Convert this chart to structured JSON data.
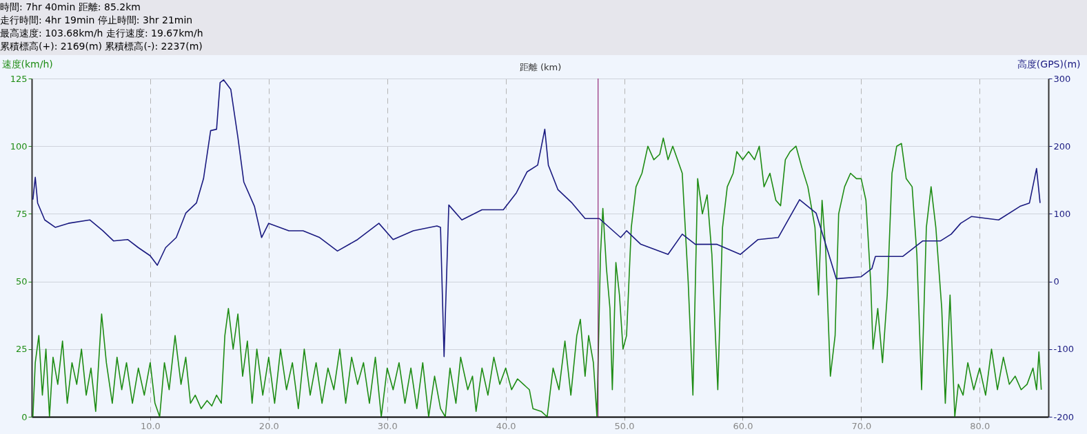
{
  "chart_data": {
    "type": "line",
    "xlabel": "距離 (km)",
    "ylabel": "速度(km/h)",
    "y2label": "高度(GPS)(m)",
    "annotations": [
      "時間: 7hr 40min 距離: 85.2km",
      "走行時間: 4hr 19min 停止時間: 3hr 21min",
      "最高速度: 103.68km/h 走行速度: 19.67km/h",
      "累積標高(+): 2169(m) 累積標高(-): 2237(m)"
    ],
    "xlim": [
      0,
      85.8
    ],
    "xticks": [
      {
        "value": 10,
        "label": "10.0"
      },
      {
        "value": 20,
        "label": "20.0"
      },
      {
        "value": 30,
        "label": "30.0"
      },
      {
        "value": 40,
        "label": "40.0"
      },
      {
        "value": 50,
        "label": "50.0"
      },
      {
        "value": 60,
        "label": "60.0"
      },
      {
        "value": 70,
        "label": "70.0"
      },
      {
        "value": 80,
        "label": "80.0"
      }
    ],
    "ylim": [
      0,
      125
    ],
    "yticks": [
      0,
      25,
      50,
      75,
      100,
      125
    ],
    "y2lim": [
      -200,
      300
    ],
    "y2ticks": [
      -200,
      -100,
      0,
      100,
      200,
      300
    ],
    "grid": true,
    "ref_lines": [
      {
        "axis": "x",
        "value": 47.8,
        "color": "#800060"
      }
    ],
    "series": [
      {
        "color": "#1e8c14",
        "x": [
          0.1,
          0.3,
          0.6,
          0.9,
          1.2,
          1.5,
          1.8,
          2.2,
          2.6,
          3.0,
          3.4,
          3.8,
          4.2,
          4.6,
          5.0,
          5.4,
          5.9,
          6.3,
          6.8,
          7.2,
          7.6,
          8.0,
          8.5,
          9.0,
          9.5,
          10.0,
          10.4,
          10.8,
          11.2,
          11.6,
          12.1,
          12.6,
          13.0,
          13.4,
          13.8,
          14.3,
          14.8,
          15.2,
          15.6,
          16.0,
          16.3,
          16.6,
          17.0,
          17.4,
          17.8,
          18.2,
          18.6,
          19.0,
          19.5,
          20.0,
          20.5,
          21.0,
          21.5,
          22.0,
          22.5,
          23.0,
          23.5,
          24.0,
          24.5,
          25.0,
          25.5,
          26.0,
          26.5,
          27.0,
          27.5,
          28.0,
          28.5,
          29.0,
          29.5,
          30.0,
          30.5,
          31.0,
          31.5,
          32.0,
          32.5,
          33.0,
          33.5,
          34.0,
          34.5,
          34.9,
          35.3,
          35.8,
          36.2,
          36.8,
          37.2,
          37.5,
          38.0,
          38.5,
          39.0,
          39.5,
          40.0,
          40.5,
          41.0,
          41.5,
          42.0,
          42.3,
          43.0,
          43.5,
          44.0,
          44.5,
          45.0,
          45.5,
          46.0,
          46.3,
          46.7,
          47.0,
          47.4,
          47.7,
          48.0,
          48.2,
          48.5,
          48.8,
          49.0,
          49.3,
          49.6,
          49.9,
          50.2,
          50.6,
          51.0,
          51.5,
          52.0,
          52.5,
          53.0,
          53.3,
          53.7,
          54.1,
          54.5,
          54.9,
          55.4,
          55.8,
          56.2,
          56.6,
          57.0,
          57.4,
          57.9,
          58.3,
          58.7,
          59.2,
          59.5,
          60.0,
          60.5,
          61.0,
          61.4,
          61.8,
          62.3,
          62.8,
          63.2,
          63.6,
          64.0,
          64.5,
          65.0,
          65.5,
          66.1,
          66.4,
          66.7,
          67.0,
          67.4,
          67.8,
          68.1,
          68.6,
          69.1,
          69.6,
          70.0,
          70.4,
          70.8,
          71.0,
          71.4,
          71.8,
          72.2,
          72.6,
          73.0,
          73.4,
          73.8,
          74.3,
          74.7,
          75.1,
          75.5,
          75.9,
          76.3,
          76.8,
          77.1,
          77.5,
          77.9,
          78.2,
          78.6,
          79.0,
          79.5,
          80.0,
          80.5,
          81.0,
          81.5,
          82.0,
          82.5,
          83.0,
          83.5,
          84.0,
          84.5,
          84.8,
          85.0,
          85.2
        ],
        "values": [
          0,
          20,
          30,
          8,
          25,
          0,
          22,
          12,
          28,
          5,
          20,
          12,
          25,
          8,
          18,
          2,
          38,
          20,
          5,
          22,
          10,
          20,
          5,
          18,
          8,
          20,
          5,
          0,
          20,
          10,
          30,
          12,
          22,
          5,
          8,
          3,
          6,
          4,
          8,
          5,
          30,
          40,
          25,
          38,
          15,
          28,
          5,
          25,
          8,
          22,
          5,
          25,
          10,
          20,
          3,
          25,
          8,
          20,
          5,
          18,
          10,
          25,
          5,
          22,
          12,
          20,
          5,
          22,
          0,
          18,
          10,
          20,
          5,
          18,
          3,
          20,
          0,
          15,
          3,
          0,
          18,
          5,
          22,
          10,
          15,
          2,
          18,
          8,
          22,
          12,
          18,
          10,
          14,
          12,
          10,
          3,
          2,
          0,
          18,
          10,
          28,
          8,
          30,
          36,
          15,
          30,
          20,
          0,
          60,
          77,
          55,
          40,
          10,
          57,
          45,
          25,
          30,
          70,
          85,
          90,
          100,
          95,
          97,
          103,
          95,
          100,
          95,
          90,
          50,
          8,
          88,
          75,
          82,
          60,
          10,
          70,
          85,
          90,
          98,
          95,
          98,
          95,
          100,
          85,
          90,
          80,
          78,
          95,
          98,
          100,
          92,
          85,
          70,
          45,
          80,
          62,
          15,
          30,
          75,
          85,
          90,
          88,
          88,
          80,
          50,
          25,
          40,
          20,
          45,
          90,
          100,
          101,
          88,
          85,
          60,
          10,
          70,
          85,
          70,
          40,
          5,
          45,
          0,
          12,
          8,
          20,
          10,
          18,
          8,
          25,
          10,
          22,
          12,
          15,
          10,
          12,
          18,
          10,
          24,
          10
        ]
      },
      {
        "color": "#1a1a80",
        "axis": "y2",
        "x": [
          0.1,
          0.3,
          0.5,
          1.1,
          2,
          3.1,
          4.9,
          6,
          6.9,
          8.1,
          9,
          10,
          10.6,
          11.3,
          12.2,
          13,
          13.9,
          14.5,
          15.1,
          15.6,
          15.9,
          16.2,
          16.8,
          17.4,
          17.9,
          18.8,
          19.4,
          20,
          21.7,
          22.9,
          24.3,
          25.8,
          27.5,
          29.3,
          30.5,
          32.2,
          34.2,
          34.5,
          34.8,
          35.2,
          36.3,
          38,
          39.8,
          40.9,
          41.8,
          42.7,
          43.3,
          43.6,
          44.4,
          45.6,
          46.7,
          47.9,
          49.7,
          50.2,
          51.4,
          53.7,
          54.9,
          56,
          57.8,
          59.8,
          61.3,
          63,
          64.8,
          66.2,
          67.9,
          70,
          70.9,
          71.2,
          73.5,
          75.2,
          76.7,
          77.6,
          78.4,
          79.3,
          81.6,
          83.4,
          84.2,
          84.8,
          85.1
        ],
        "values": [
          121,
          154,
          116,
          91,
          80,
          86,
          91,
          75,
          60,
          62,
          50,
          38,
          24,
          50,
          65,
          101,
          116,
          152,
          223,
          225,
          294,
          298,
          284,
          213,
          147,
          111,
          65,
          86,
          75,
          75,
          65,
          45,
          62,
          86,
          62,
          75,
          82,
          80,
          -111,
          113,
          91,
          106,
          106,
          131,
          162,
          172,
          225,
          172,
          136,
          116,
          93,
          93,
          65,
          75,
          55,
          40,
          70,
          55,
          55,
          40,
          62,
          65,
          121,
          101,
          4,
          7,
          19,
          37,
          37,
          60,
          60,
          70,
          86,
          96,
          91,
          111,
          116,
          167,
          116
        ]
      }
    ]
  }
}
